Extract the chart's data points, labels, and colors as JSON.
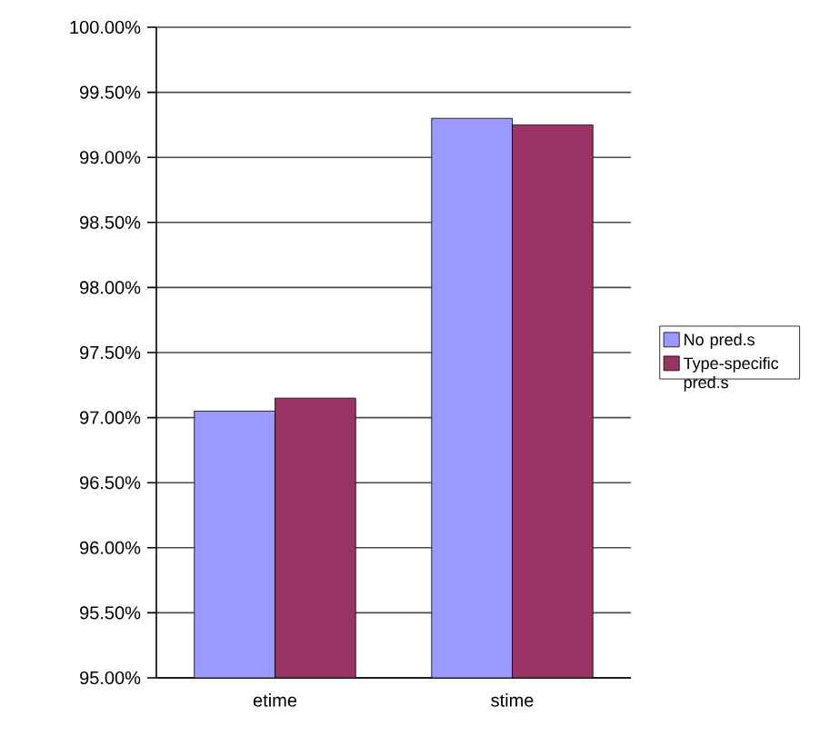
{
  "chart_data": {
    "type": "bar",
    "categories": [
      "etime",
      "stime"
    ],
    "series": [
      {
        "name": "No pred.s",
        "color": "#9999ff",
        "values": [
          97.05,
          99.3
        ]
      },
      {
        "name": "Type-specific pred.s",
        "color": "#993366",
        "values": [
          97.15,
          99.25
        ]
      }
    ],
    "ylim": [
      95,
      100
    ],
    "yticks": [
      {
        "value": 95,
        "label": "95.00%"
      },
      {
        "value": 95.5,
        "label": "95.50%"
      },
      {
        "value": 96,
        "label": "96.00%"
      },
      {
        "value": 96.5,
        "label": "96.50%"
      },
      {
        "value": 97,
        "label": "97.00%"
      },
      {
        "value": 97.5,
        "label": "97.50%"
      },
      {
        "value": 98,
        "label": "98.00%"
      },
      {
        "value": 98.5,
        "label": "98.50%"
      },
      {
        "value": 99,
        "label": "99.00%"
      },
      {
        "value": 99.5,
        "label": "99.50%"
      },
      {
        "value": 100,
        "label": "100.00%"
      }
    ],
    "grid": "y",
    "legend": "right"
  }
}
